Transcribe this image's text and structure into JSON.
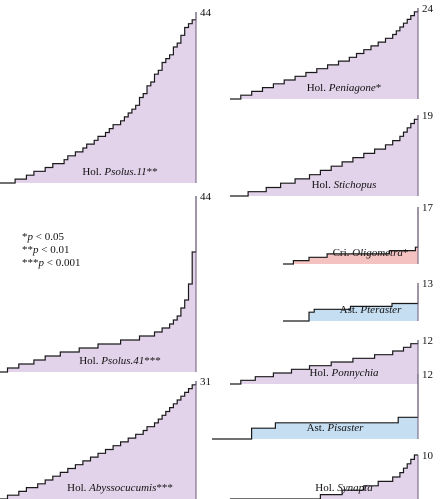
{
  "chart_data": {
    "type": "area",
    "note_lines": [
      {
        "stars": "*",
        "p": "p",
        "rest": " < 0.05"
      },
      {
        "stars": "**",
        "p": "p",
        "rest": " < 0.01"
      },
      {
        "stars": "***",
        "p": "p",
        "rest": " < 0.001"
      }
    ],
    "colors": {
      "Hol": "#e2d3ea",
      "Cri": "#f4c3c1",
      "Ast": "#c5def2",
      "line": "#1a1a1a",
      "edge": "#6c5a78"
    },
    "panels": [
      {
        "id": "psolus11",
        "class": "Hol",
        "label_prefix": "Hol. ",
        "label_italic": "Psolus.11",
        "label_suffix": "**",
        "count": "44",
        "steps": [
          0,
          0,
          0,
          0,
          1,
          1,
          1,
          2,
          2,
          3,
          3,
          3,
          4,
          4,
          5,
          5,
          5,
          6,
          7,
          7,
          8,
          8,
          9,
          10,
          10,
          11,
          12,
          12,
          13,
          14,
          15,
          15,
          16,
          17,
          18,
          19,
          20,
          22,
          23,
          25,
          26,
          28,
          29,
          31,
          32,
          33,
          35,
          36,
          38,
          40,
          41,
          42,
          44
        ],
        "scale": 44
      },
      {
        "id": "psolus41",
        "class": "Hol",
        "label_prefix": "Hol. ",
        "label_italic": "Psolus.41",
        "label_suffix": "***",
        "count": "44",
        "steps": [
          0,
          0,
          1,
          1,
          1,
          2,
          2,
          2,
          2,
          3,
          3,
          3,
          4,
          4,
          4,
          4,
          5,
          5,
          5,
          5,
          5,
          6,
          6,
          6,
          6,
          6,
          7,
          7,
          7,
          7,
          7,
          7,
          8,
          8,
          8,
          8,
          8,
          9,
          9,
          9,
          9,
          10,
          10,
          11,
          11,
          12,
          13,
          14,
          16,
          18,
          22,
          30,
          44
        ],
        "scale": 44
      },
      {
        "id": "abyssocucumis",
        "class": "Hol",
        "label_prefix": "Hol. ",
        "label_italic": "Abyssocucumis",
        "label_suffix": "***",
        "count": "31",
        "steps": [
          0,
          0,
          1,
          1,
          1,
          2,
          2,
          3,
          3,
          3,
          4,
          4,
          5,
          5,
          6,
          6,
          7,
          7,
          8,
          8,
          9,
          9,
          10,
          10,
          11,
          11,
          12,
          12,
          13,
          13,
          14,
          14,
          15,
          15,
          16,
          16,
          17,
          17,
          18,
          19,
          19,
          20,
          21,
          22,
          23,
          24,
          25,
          26,
          27,
          28,
          29,
          30,
          31
        ],
        "scale": 31
      },
      {
        "id": "peniagone",
        "class": "Hol",
        "label_prefix": "Hol. ",
        "label_italic": "Peniagone",
        "label_suffix": "*",
        "count": "24",
        "steps": [
          0,
          0,
          0,
          1,
          1,
          1,
          2,
          2,
          2,
          3,
          3,
          3,
          4,
          4,
          4,
          5,
          5,
          5,
          6,
          6,
          6,
          7,
          7,
          7,
          8,
          8,
          8,
          9,
          9,
          9,
          10,
          10,
          10,
          11,
          11,
          12,
          12,
          13,
          13,
          14,
          14,
          15,
          15,
          16,
          16,
          17,
          18,
          19,
          20,
          21,
          22,
          23,
          24
        ],
        "scale": 24
      },
      {
        "id": "stichopus",
        "class": "Hol",
        "label_prefix": "Hol. ",
        "label_italic": "Stichopus",
        "label_suffix": "",
        "count": "19",
        "steps": [
          0,
          0,
          0,
          0,
          0,
          1,
          1,
          1,
          1,
          1,
          2,
          2,
          2,
          2,
          3,
          3,
          3,
          3,
          4,
          4,
          4,
          4,
          5,
          5,
          5,
          6,
          6,
          6,
          7,
          7,
          7,
          8,
          8,
          8,
          9,
          9,
          9,
          10,
          10,
          10,
          11,
          11,
          11,
          12,
          12,
          13,
          13,
          14,
          15,
          16,
          17,
          18,
          19
        ],
        "scale": 19
      },
      {
        "id": "oligometra",
        "class": "Cri",
        "label_prefix": "Cri. ",
        "label_italic": "Oligometra",
        "label_suffix": "*",
        "count": "17",
        "steps": [
          0,
          0,
          0,
          0,
          1,
          1,
          1,
          1,
          1,
          1,
          2,
          2,
          2,
          2,
          2,
          2,
          2,
          3,
          3,
          3,
          3,
          3,
          3,
          3,
          3,
          3,
          3,
          3,
          3,
          3,
          3,
          3,
          3,
          3,
          3,
          3,
          3,
          3,
          3,
          3,
          3,
          4,
          4,
          4,
          4,
          4,
          4,
          4,
          4,
          4,
          4,
          5,
          17
        ],
        "scale": 17
      },
      {
        "id": "pteraster",
        "class": "Ast",
        "label_prefix": "Ast. ",
        "label_italic": "Pteraster",
        "label_suffix": "",
        "count": "13",
        "steps": [
          0,
          0,
          0,
          0,
          0,
          0,
          0,
          0,
          0,
          0,
          3,
          3,
          4,
          4,
          4,
          4,
          4,
          4,
          4,
          4,
          4,
          4,
          4,
          4,
          4,
          4,
          5,
          5,
          5,
          5,
          5,
          5,
          5,
          5,
          5,
          5,
          5,
          5,
          5,
          5,
          5,
          5,
          6,
          6,
          6,
          6,
          6,
          6,
          6,
          6,
          6,
          6,
          13
        ],
        "scale": 13
      },
      {
        "id": "ponychia",
        "class": "Hol",
        "label_prefix": "Hol. ",
        "label_italic": "Ponnychia",
        "label_suffix": "",
        "count": "12",
        "steps": [
          0,
          0,
          0,
          1,
          1,
          1,
          1,
          2,
          2,
          2,
          2,
          2,
          3,
          3,
          3,
          3,
          3,
          4,
          4,
          4,
          4,
          4,
          5,
          5,
          5,
          5,
          5,
          5,
          6,
          6,
          6,
          6,
          6,
          6,
          7,
          7,
          7,
          7,
          7,
          7,
          8,
          8,
          8,
          8,
          8,
          9,
          9,
          9,
          10,
          10,
          11,
          11,
          12
        ],
        "scale": 12
      },
      {
        "id": "pisaster",
        "class": "Ast",
        "label_prefix": "Ast. ",
        "label_italic": "Pisaster",
        "label_suffix": "",
        "count": "12",
        "steps": [
          0,
          0,
          0,
          0,
          0,
          0,
          0,
          0,
          0,
          0,
          2,
          2,
          2,
          2,
          2,
          2,
          3,
          3,
          3,
          3,
          3,
          3,
          3,
          3,
          3,
          3,
          3,
          3,
          3,
          3,
          3,
          3,
          3,
          3,
          3,
          3,
          3,
          3,
          3,
          3,
          3,
          3,
          3,
          3,
          3,
          3,
          3,
          4,
          4,
          4,
          4,
          4,
          12
        ],
        "scale": 12
      },
      {
        "id": "synapta",
        "class": "Hol",
        "label_prefix": "Hol. ",
        "label_italic": "Synapta",
        "label_suffix": "",
        "count": "10",
        "steps": [
          0,
          0,
          0,
          0,
          0,
          0,
          0,
          0,
          0,
          0,
          0,
          0,
          0,
          0,
          0,
          0,
          0,
          0,
          0,
          0,
          0,
          0,
          0,
          0,
          0,
          1,
          1,
          1,
          1,
          1,
          1,
          2,
          2,
          2,
          2,
          2,
          2,
          3,
          3,
          3,
          3,
          4,
          4,
          4,
          4,
          5,
          5,
          6,
          7,
          8,
          9,
          10,
          10
        ],
        "scale": 10
      }
    ]
  }
}
